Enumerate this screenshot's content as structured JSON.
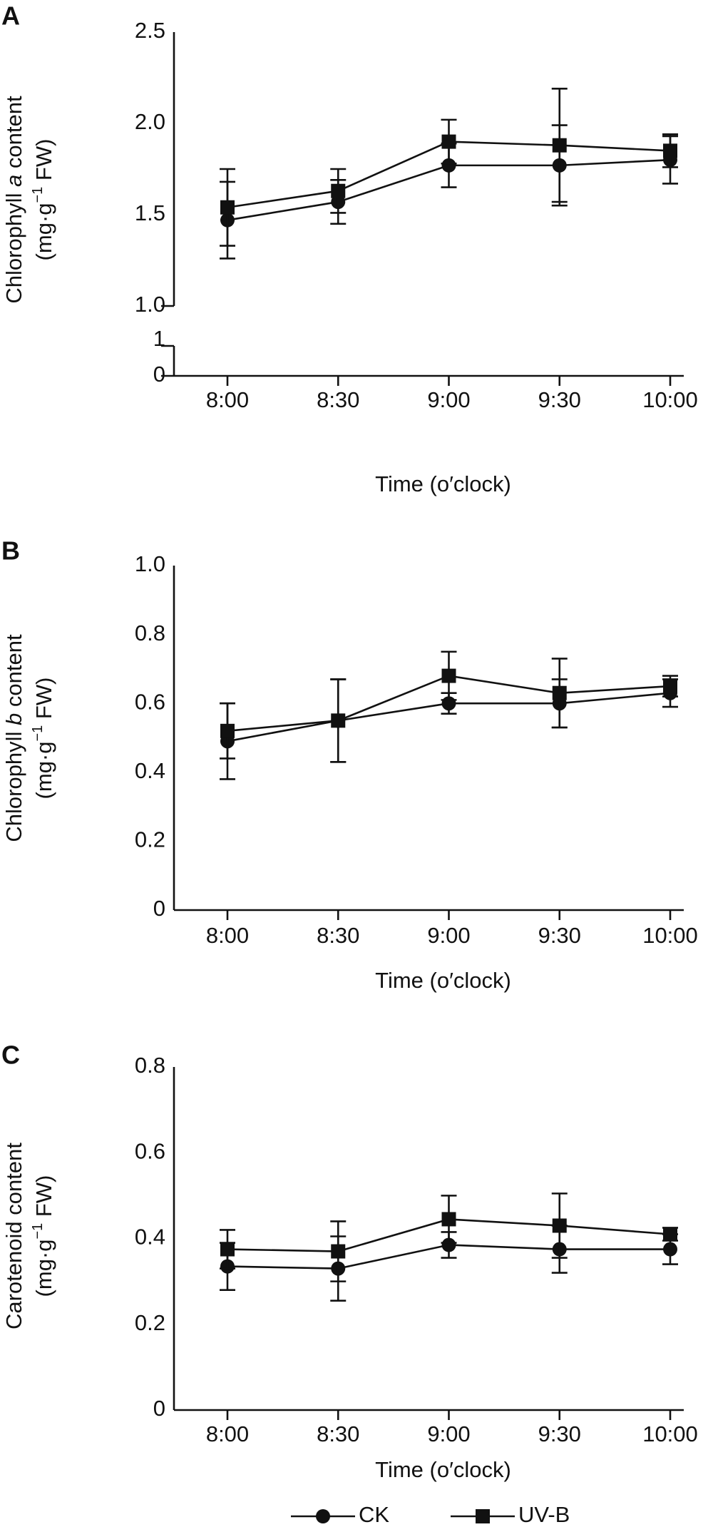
{
  "chart_data": [
    {
      "type": "line",
      "letter": "A",
      "ylabel": [
        "Chlorophyll ",
        "a",
        " content"
      ],
      "ylabel_unit": [
        "(mg·g",
        "−1",
        " FW)"
      ],
      "xlabel": "Time (o′clock)",
      "categories": [
        "8:00",
        "8:30",
        "9:00",
        "9:30",
        "10:00"
      ],
      "ylim": [
        1.0,
        2.5
      ],
      "yticks": [
        {
          "value": 1.0,
          "label": "1.0"
        },
        {
          "value": 1.5,
          "label": "1.5"
        },
        {
          "value": 2.0,
          "label": "2.0"
        },
        {
          "value": 2.5,
          "label": "2.5"
        }
      ],
      "lower_ylim": [
        0,
        1
      ],
      "lower_yticks": [
        0,
        1
      ],
      "series": [
        {
          "name": "CK",
          "color": "#000000",
          "marker": "circle",
          "values": [
            1.47,
            1.57,
            1.77,
            1.77,
            1.8
          ],
          "errors": [
            0.21,
            0.12,
            0.12,
            0.22,
            0.13
          ]
        },
        {
          "name": "UV-B",
          "color": "#000000",
          "marker": "square",
          "values": [
            1.54,
            1.63,
            1.9,
            1.88,
            1.85
          ],
          "errors": [
            0.21,
            0.12,
            0.12,
            0.31,
            0.09
          ]
        }
      ]
    },
    {
      "type": "line",
      "letter": "B",
      "ylabel": [
        "Chlorophyll ",
        "b",
        " content"
      ],
      "ylabel_unit": [
        "(mg·g",
        "−1",
        " FW)"
      ],
      "xlabel": "Time (o′clock)",
      "categories": [
        "8:00",
        "8:30",
        "9:00",
        "9:30",
        "10:00"
      ],
      "ylim": [
        0,
        1.0
      ],
      "yticks": [
        0,
        0.2,
        0.4,
        0.6,
        0.8,
        {
          "value": 1.0,
          "label": "1.0"
        }
      ],
      "series": [
        {
          "name": "CK",
          "color": "#000000",
          "marker": "circle",
          "values": [
            0.49,
            0.55,
            0.6,
            0.6,
            0.63
          ],
          "errors": [
            0.11,
            0.12,
            0.03,
            0.07,
            0.04
          ]
        },
        {
          "name": "UV-B",
          "color": "#000000",
          "marker": "square",
          "values": [
            0.52,
            0.55,
            0.68,
            0.63,
            0.65
          ],
          "errors": [
            0.08,
            0.12,
            0.07,
            0.1,
            0.03
          ]
        }
      ]
    },
    {
      "type": "line",
      "letter": "C",
      "ylabel": [
        "Carotenoid content"
      ],
      "ylabel_unit": [
        "(mg·g",
        "−1",
        " FW)"
      ],
      "xlabel": "Time (o′clock)",
      "categories": [
        "8:00",
        "8:30",
        "9:00",
        "9:30",
        "10:00"
      ],
      "ylim": [
        0,
        0.8
      ],
      "yticks": [
        0,
        0.2,
        0.4,
        0.6,
        0.8
      ],
      "legend": "bottom",
      "series": [
        {
          "name": "CK",
          "color": "#000000",
          "marker": "circle",
          "values": [
            0.335,
            0.33,
            0.385,
            0.375,
            0.375
          ],
          "errors": [
            0.055,
            0.075,
            0.03,
            0.055,
            0.035
          ]
        },
        {
          "name": "UV-B",
          "color": "#000000",
          "marker": "square",
          "values": [
            0.375,
            0.37,
            0.445,
            0.43,
            0.41
          ],
          "errors": [
            0.045,
            0.07,
            0.055,
            0.075,
            0.015
          ]
        }
      ]
    }
  ]
}
